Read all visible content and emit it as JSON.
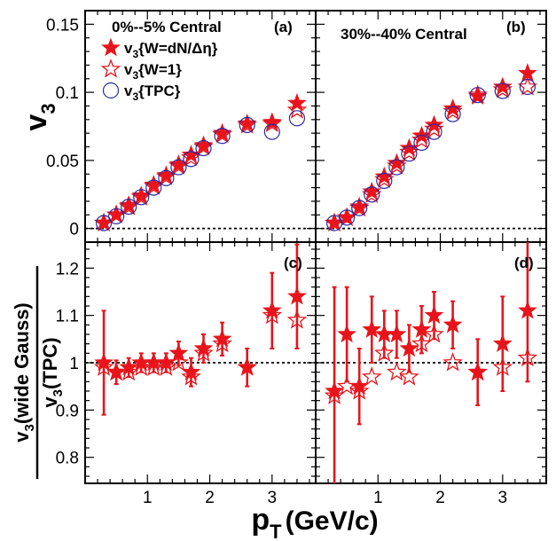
{
  "colors": {
    "red": "#e8141c",
    "blue": "#2a2aa0",
    "frame": "#000000"
  },
  "chart_data": [
    {
      "type": "scatter",
      "panel": "(a)",
      "title": "0%--5% Central",
      "ylabel_main": "v",
      "ylabel_sub": "3",
      "xlim": [
        0,
        3.7
      ],
      "ylim": [
        -0.01,
        0.16
      ],
      "yticks": [
        0,
        0.05,
        0.1,
        0.15
      ],
      "ytick_labels": [
        "0",
        "0.05",
        "0.1",
        "0.15"
      ],
      "legend": [
        {
          "main": "v",
          "sub": "3",
          "rest": "{W=dN/Δη}",
          "marker": "filled-star"
        },
        {
          "main": "v",
          "sub": "3",
          "rest": "{W=1}",
          "marker": "open-star"
        },
        {
          "main": "v",
          "sub": "3",
          "rest": "{TPC}",
          "marker": "open-circle"
        }
      ],
      "series": [
        {
          "name": "v3{W=dN/Δη}",
          "marker": "filled-star",
          "x": [
            0.3,
            0.5,
            0.7,
            0.9,
            1.1,
            1.3,
            1.5,
            1.7,
            1.9,
            2.2,
            2.6,
            3.0,
            3.4
          ],
          "y": [
            0.004,
            0.01,
            0.017,
            0.024,
            0.032,
            0.039,
            0.047,
            0.054,
            0.061,
            0.07,
            0.077,
            0.078,
            0.092
          ]
        },
        {
          "name": "v3{W=1}",
          "marker": "open-star",
          "x": [
            0.3,
            0.5,
            0.7,
            0.9,
            1.1,
            1.3,
            1.5,
            1.7,
            1.9,
            2.2,
            2.6,
            3.0,
            3.4
          ],
          "y": [
            0.004,
            0.01,
            0.016,
            0.023,
            0.031,
            0.038,
            0.046,
            0.052,
            0.06,
            0.069,
            0.076,
            0.077,
            0.087
          ]
        },
        {
          "name": "v3{TPC}",
          "marker": "open-circle",
          "x": [
            0.3,
            0.5,
            0.7,
            0.9,
            1.1,
            1.3,
            1.5,
            1.7,
            1.9,
            2.2,
            2.6,
            3.0,
            3.4
          ],
          "y": [
            0.004,
            0.009,
            0.016,
            0.023,
            0.03,
            0.037,
            0.045,
            0.051,
            0.059,
            0.068,
            0.076,
            0.071,
            0.081
          ]
        }
      ]
    },
    {
      "type": "scatter",
      "panel": "(b)",
      "title": "30%--40% Central",
      "xlim": [
        0,
        3.7
      ],
      "ylim": [
        -0.01,
        0.16
      ],
      "series": [
        {
          "name": "v3{W=dN/Δη}",
          "marker": "filled-star",
          "x": [
            0.3,
            0.5,
            0.7,
            0.9,
            1.1,
            1.3,
            1.5,
            1.7,
            1.9,
            2.2,
            2.6,
            3.0,
            3.4
          ],
          "y": [
            0.004,
            0.008,
            0.016,
            0.027,
            0.038,
            0.048,
            0.059,
            0.068,
            0.076,
            0.088,
            0.097,
            0.104,
            0.114
          ]
        },
        {
          "name": "v3{W=1}",
          "marker": "open-star",
          "x": [
            0.3,
            0.5,
            0.7,
            0.9,
            1.1,
            1.3,
            1.5,
            1.7,
            1.9,
            2.2,
            2.6,
            3.0,
            3.4
          ],
          "y": [
            0.004,
            0.008,
            0.015,
            0.025,
            0.036,
            0.046,
            0.056,
            0.065,
            0.073,
            0.086,
            0.098,
            0.102,
            0.104
          ]
        },
        {
          "name": "v3{TPC}",
          "marker": "open-circle",
          "x": [
            0.3,
            0.5,
            0.7,
            0.9,
            1.1,
            1.3,
            1.5,
            1.7,
            1.9,
            2.2,
            2.6,
            3.0,
            3.4
          ],
          "y": [
            0.004,
            0.008,
            0.015,
            0.025,
            0.035,
            0.045,
            0.055,
            0.063,
            0.071,
            0.084,
            0.098,
            0.101,
            0.104
          ]
        }
      ]
    },
    {
      "type": "scatter",
      "panel": "(c)",
      "ylabel_line1_main": "v",
      "ylabel_line1_sub": "3",
      "ylabel_line1_rest": "(wide Gauss)",
      "ylabel_line2_main": "v",
      "ylabel_line2_sub": "3",
      "ylabel_line2_rest": "(TPC)",
      "xlim": [
        0,
        3.7
      ],
      "ylim": [
        0.745,
        1.255
      ],
      "yticks": [
        0.8,
        0.9,
        1.0,
        1.1,
        1.2
      ],
      "ytick_labels": [
        "0.8",
        "0.9",
        "1",
        "1.1",
        "1.2"
      ],
      "xticks": [
        1,
        2,
        3
      ],
      "xtick_labels": [
        "1",
        "2",
        "3"
      ],
      "series": [
        {
          "name": "filled star ratio",
          "marker": "filled-star",
          "x": [
            0.3,
            0.5,
            0.7,
            0.9,
            1.1,
            1.3,
            1.5,
            1.7,
            1.9,
            2.2,
            2.6,
            3.0,
            3.4
          ],
          "y": [
            1.0,
            0.98,
            0.99,
            1.0,
            1.0,
            1.0,
            1.02,
            0.98,
            1.03,
            1.05,
            0.99,
            1.11,
            1.14
          ],
          "err": [
            0.11,
            0.025,
            0.02,
            0.02,
            0.02,
            0.02,
            0.025,
            0.03,
            0.03,
            0.035,
            0.04,
            0.08,
            0.11
          ]
        },
        {
          "name": "open star ratio",
          "marker": "open-star",
          "x": [
            0.3,
            0.5,
            0.7,
            0.9,
            1.1,
            1.3,
            1.5,
            1.7,
            1.9,
            2.2,
            2.6,
            3.0,
            3.4
          ],
          "y": [
            0.99,
            0.98,
            0.98,
            0.99,
            0.99,
            0.99,
            1.0,
            0.97,
            1.02,
            1.04,
            0.99,
            1.1,
            1.09
          ]
        }
      ]
    },
    {
      "type": "scatter",
      "panel": "(d)",
      "xlim": [
        0,
        3.7
      ],
      "ylim": [
        0.745,
        1.255
      ],
      "xticks": [
        1,
        2,
        3
      ],
      "xtick_labels": [
        "1",
        "2",
        "3"
      ],
      "series": [
        {
          "name": "filled star ratio",
          "marker": "filled-star",
          "x": [
            0.3,
            0.5,
            0.7,
            0.9,
            1.1,
            1.3,
            1.5,
            1.7,
            1.9,
            2.2,
            2.6,
            3.0,
            3.4
          ],
          "y": [
            0.94,
            1.06,
            0.95,
            1.07,
            1.06,
            1.06,
            1.03,
            1.07,
            1.1,
            1.08,
            0.98,
            1.04,
            1.11
          ],
          "err": [
            0.22,
            0.1,
            0.08,
            0.07,
            0.05,
            0.05,
            0.05,
            0.05,
            0.05,
            0.05,
            0.07,
            0.1,
            0.15
          ]
        },
        {
          "name": "open star ratio",
          "marker": "open-star",
          "x": [
            0.3,
            0.5,
            0.7,
            0.9,
            1.1,
            1.3,
            1.5,
            1.7,
            1.9,
            2.2,
            2.6,
            3.0,
            3.4
          ],
          "y": [
            0.93,
            0.95,
            0.94,
            0.97,
            1.02,
            0.98,
            0.97,
            1.04,
            1.06,
            1.0,
            0.98,
            0.99,
            1.01
          ]
        }
      ]
    }
  ],
  "xlabel_main": "p",
  "xlabel_sub": "T",
  "xlabel_rest": "(GeV/c)"
}
